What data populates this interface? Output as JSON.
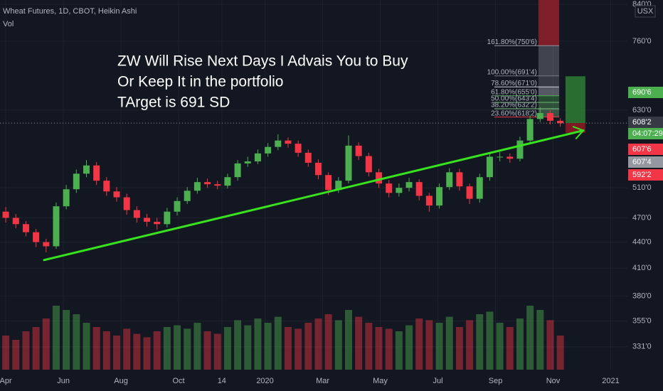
{
  "chart_data": {
    "type": "candlestick",
    "header": "Wheat Futures, 1D, CBOT, Heikin Ashi",
    "volume_label": "Vol",
    "currency": "USX",
    "annotation_lines": [
      "ZW Will Rise Next Days I Advais You to Buy",
      "Or Keep It in the portfolio",
      "TArget is 691 SD"
    ],
    "log_scale": true,
    "grid": true,
    "up_color": "#4caf50",
    "down_color": "#f23645",
    "x": [
      0,
      0.35,
      0.7,
      1.05,
      1.4,
      1.75,
      2.1,
      2.45,
      2.8,
      3.15,
      3.5,
      3.85,
      4.2,
      4.55,
      4.9,
      5.25,
      5.6,
      5.95,
      6.3,
      6.65,
      7,
      7.35,
      7.7,
      8.05,
      8.4,
      8.75,
      9.1,
      9.45,
      9.8,
      10.15,
      10.5,
      10.85,
      11.2,
      11.55,
      11.9,
      12.25,
      12.6,
      12.95,
      13.3,
      13.65,
      14,
      14.35,
      14.7,
      15.05,
      15.4,
      15.75,
      16.1,
      16.45,
      16.8,
      17.15,
      17.5,
      17.85,
      18.2,
      18.55,
      18.9,
      19.25
    ],
    "open": [
      478,
      470,
      462,
      452,
      440,
      435,
      485,
      508,
      530,
      542,
      520,
      505,
      497,
      480,
      470,
      465,
      462,
      478,
      492,
      506,
      518,
      515,
      513,
      525,
      545,
      548,
      560,
      570,
      580,
      575,
      561,
      546,
      528,
      507,
      520,
      572,
      556,
      532,
      516,
      503,
      510,
      518,
      499,
      486,
      511,
      532,
      512,
      495,
      525,
      555,
      555,
      552,
      580,
      615,
      625,
      612
    ],
    "high": [
      484,
      475,
      466,
      456,
      444,
      490,
      514,
      536,
      550,
      547,
      525,
      511,
      502,
      485,
      475,
      470,
      483,
      497,
      511,
      524,
      523,
      520,
      530,
      550,
      555,
      566,
      576,
      590,
      585,
      580,
      566,
      551,
      532,
      525,
      588,
      577,
      561,
      537,
      521,
      516,
      524,
      522,
      503,
      516,
      538,
      537,
      516,
      530,
      561,
      562,
      560,
      586,
      622,
      635,
      630,
      616
    ],
    "low": [
      464,
      457,
      447,
      434,
      428,
      432,
      481,
      503,
      525,
      514,
      499,
      491,
      474,
      464,
      459,
      455,
      458,
      473,
      488,
      502,
      510,
      508,
      509,
      520,
      540,
      544,
      555,
      565,
      569,
      555,
      540,
      522,
      500,
      503,
      516,
      550,
      526,
      510,
      497,
      498,
      505,
      493,
      478,
      482,
      507,
      506,
      488,
      490,
      520,
      548,
      546,
      548,
      576,
      610,
      606,
      602
    ],
    "close": [
      470,
      462,
      452,
      440,
      435,
      485,
      508,
      530,
      542,
      520,
      505,
      497,
      480,
      470,
      465,
      462,
      478,
      492,
      506,
      518,
      515,
      513,
      525,
      545,
      548,
      560,
      570,
      580,
      575,
      561,
      546,
      528,
      507,
      520,
      572,
      556,
      532,
      516,
      503,
      510,
      518,
      499,
      486,
      511,
      532,
      512,
      495,
      525,
      555,
      555,
      552,
      580,
      615,
      625,
      612,
      608
    ],
    "volume": [
      40,
      35,
      45,
      50,
      60,
      75,
      70,
      65,
      55,
      50,
      45,
      40,
      48,
      42,
      38,
      45,
      50,
      52,
      48,
      55,
      45,
      42,
      50,
      58,
      52,
      60,
      55,
      62,
      50,
      48,
      55,
      60,
      65,
      58,
      70,
      62,
      55,
      50,
      48,
      45,
      52,
      60,
      58,
      55,
      62,
      50,
      58,
      65,
      68,
      55,
      50,
      60,
      75,
      70,
      58,
      40
    ],
    "vlim": [
      0,
      100
    ],
    "xlim": [
      -0.2,
      21.58
    ],
    "ylim": [
      311,
      850
    ],
    "xticks": [
      {
        "value": 0,
        "label": "Apr"
      },
      {
        "value": 2,
        "label": "Jun"
      },
      {
        "value": 4,
        "label": "Aug"
      },
      {
        "value": 6,
        "label": "Oct"
      },
      {
        "value": 7.5,
        "label": "14"
      },
      {
        "value": 9,
        "label": "2020"
      },
      {
        "value": 11,
        "label": "Mar"
      },
      {
        "value": 13,
        "label": "May"
      },
      {
        "value": 15,
        "label": "Jul"
      },
      {
        "value": 17,
        "label": "Sep"
      },
      {
        "value": 19,
        "label": "Nov"
      },
      {
        "value": 21,
        "label": "2021"
      }
    ],
    "yticks": [
      {
        "value": 840,
        "label": "840'0"
      },
      {
        "value": 760,
        "label": "760'0"
      },
      {
        "value": 630,
        "label": "630'0"
      },
      {
        "value": 510,
        "label": "510'0"
      },
      {
        "value": 470,
        "label": "470'0"
      },
      {
        "value": 440,
        "label": "440'0"
      },
      {
        "value": 410,
        "label": "410'0"
      },
      {
        "value": 380,
        "label": "380'0"
      },
      {
        "value": 355,
        "label": "355'0"
      },
      {
        "value": 331,
        "label": "331'0"
      }
    ],
    "trendline": {
      "x": [
        1.33,
        20.05
      ],
      "y": [
        419,
        596
      ],
      "color": "#39e21e"
    },
    "fib": {
      "line_x": [
        16.96,
        18.49
      ],
      "band_x": [
        18.49,
        19.21
      ],
      "top_color": "#8b1f2a",
      "levels": [
        {
          "value": 750.75,
          "label": "161.80%(750'6)",
          "color": "#9598a1"
        },
        {
          "value": 691.5,
          "label": "100.00%(691'4)",
          "color": "#787b86"
        },
        {
          "value": 671,
          "label": "78.60%(671'0)",
          "color": "#d1d4dc"
        },
        {
          "value": 655,
          "label": "61.80%(655'0)",
          "color": "#4caf50"
        },
        {
          "value": 643.5,
          "label": "50.00%(643'4)",
          "color": "#66bb6a"
        },
        {
          "value": 632.25,
          "label": "38.20%(632'2)",
          "color": "#81c784"
        },
        {
          "value": 618.25,
          "label": "23.60%(618'2)",
          "color": "#f23645"
        }
      ]
    },
    "position": {
      "x": [
        19.43,
        20.12
      ],
      "entry": 608.25,
      "target": 690.75,
      "stop": 592.25
    },
    "price_labels": [
      {
        "text": "690'6",
        "color": "#4caf50"
      },
      {
        "text": "608'2",
        "color": "#363a45"
      },
      {
        "text": "04:07:29",
        "color": "#4caf50"
      },
      {
        "text": "607'6",
        "color": "#f23645"
      },
      {
        "text": "607'4",
        "color": "#9598a1"
      },
      {
        "text": "592'2",
        "color": "#f23645"
      }
    ]
  }
}
